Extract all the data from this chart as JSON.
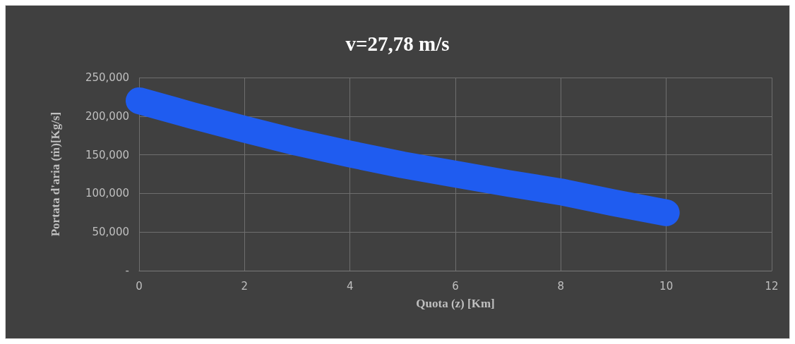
{
  "chart_data": {
    "type": "line",
    "title": "v=27,78 m/s",
    "xlabel": "Quota (z) [Km]",
    "ylabel": "Portata d'aria (ṁ)[Kg/s]",
    "x": [
      0,
      1,
      2,
      3,
      4,
      5,
      6,
      7,
      8,
      9,
      10
    ],
    "series": [
      {
        "color": "#1f5cf0",
        "values": [
          220000,
          201000,
          183000,
          166000,
          151000,
          137000,
          125000,
          113000,
          102000,
          88000,
          75000
        ]
      }
    ],
    "xlim": [
      0,
      12
    ],
    "xticks": [
      0,
      2,
      4,
      6,
      8,
      10,
      12
    ],
    "ylim": [
      0,
      250000
    ],
    "yticks": [
      {
        "value": 0,
        "label": "-"
      },
      {
        "value": 50000,
        "label": "50,000"
      },
      {
        "value": 100000,
        "label": "100,000"
      },
      {
        "value": 150000,
        "label": "150,000"
      },
      {
        "value": 200000,
        "label": "200,000"
      },
      {
        "value": 250000,
        "label": "250,000"
      }
    ],
    "grid": true,
    "line_style": "solid"
  }
}
